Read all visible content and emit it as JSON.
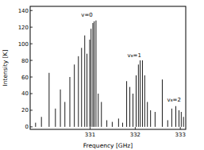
{
  "chart_data": {
    "type": "stem",
    "x_label": "Frequency [GHz]",
    "y_label": "Intensity [K]",
    "x": [
      329.79,
      329.92,
      330.09,
      330.23,
      330.34,
      330.44,
      330.55,
      330.65,
      330.74,
      330.81,
      330.88,
      330.93,
      330.99,
      331.02,
      331.06,
      331.09,
      331.13,
      331.18,
      331.25,
      331.37,
      331.49,
      331.63,
      331.72,
      331.81,
      331.88,
      331.95,
      332.02,
      332.07,
      332.11,
      332.16,
      332.21,
      332.27,
      332.34,
      332.44,
      332.6,
      332.72,
      332.81,
      332.9,
      332.97,
      333.02,
      333.07
    ],
    "values": [
      5,
      12,
      65,
      22,
      45,
      30,
      60,
      75,
      85,
      95,
      110,
      88,
      105,
      118,
      125,
      127,
      128,
      40,
      30,
      8,
      6,
      10,
      5,
      55,
      48,
      40,
      62,
      75,
      80,
      80,
      62,
      30,
      20,
      18,
      57,
      8,
      22,
      25,
      20,
      18,
      12
    ],
    "color": "#000000",
    "xlim": [
      329.67,
      333.12
    ],
    "ylim": [
      -3,
      145
    ],
    "xticks": [
      331,
      332,
      333
    ],
    "yticks": [
      0,
      20,
      40,
      60,
      80,
      100,
      120,
      140
    ],
    "annotations": [
      {
        "text": "v=0",
        "x": 330.93,
        "y": 133
      },
      {
        "text": "v₈=1",
        "x": 331.98,
        "y": 84
      },
      {
        "text": "v₈=2",
        "x": 332.86,
        "y": 30
      }
    ]
  }
}
